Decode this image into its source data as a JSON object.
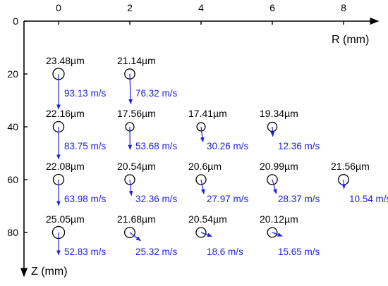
{
  "chart_data": {
    "type": "scatter",
    "xlabel": "R (mm)",
    "ylabel": "Z (mm)",
    "xlim": [
      -1.0,
      9.2
    ],
    "ylim": [
      0,
      95
    ],
    "x_ticks": [
      "0",
      "2",
      "4",
      "6",
      "8"
    ],
    "x_tick_values": [
      0,
      2,
      4,
      6,
      8
    ],
    "y_ticks": [
      "0",
      "20",
      "40",
      "60",
      "80"
    ],
    "y_tick_values": [
      0,
      20,
      40,
      60,
      80
    ],
    "y_inverted": true,
    "x_axis_position": "top",
    "arrow_color": "#2020dd",
    "points": [
      {
        "r": 0,
        "z": 20,
        "diameter": "23.48µm",
        "velocity": "93.13 m/s",
        "vr": 0.0,
        "vz": 1.0
      },
      {
        "r": 2,
        "z": 20,
        "diameter": "21.14µm",
        "velocity": "76.32 m/s",
        "vr": 0.03,
        "vz": 1.0
      },
      {
        "r": 0,
        "z": 40,
        "diameter": "22.16µm",
        "velocity": "83.75 m/s",
        "vr": 0.0,
        "vz": 1.0
      },
      {
        "r": 2,
        "z": 40,
        "diameter": "17.56µm",
        "velocity": "53.68 m/s",
        "vr": 0.01,
        "vz": 1.0
      },
      {
        "r": 4,
        "z": 40,
        "diameter": "17.41µm",
        "velocity": "30.26 m/s",
        "vr": 0.12,
        "vz": 1.0
      },
      {
        "r": 6,
        "z": 40,
        "diameter": "19.34µm",
        "velocity": "12.36 m/s",
        "vr": 0.05,
        "vz": 1.0
      },
      {
        "r": 0,
        "z": 60,
        "diameter": "22.08µm",
        "velocity": "63.98 m/s",
        "vr": 0.0,
        "vz": 1.0
      },
      {
        "r": 2,
        "z": 60,
        "diameter": "20.54µm",
        "velocity": "32.36 m/s",
        "vr": 0.1,
        "vz": 1.0
      },
      {
        "r": 4,
        "z": 60,
        "diameter": "20.6µm",
        "velocity": "27.97 m/s",
        "vr": 0.2,
        "vz": 1.0
      },
      {
        "r": 6,
        "z": 60,
        "diameter": "20.99µm",
        "velocity": "28.37 m/s",
        "vr": 0.28,
        "vz": 1.0
      },
      {
        "r": 8,
        "z": 60,
        "diameter": "21.56µm",
        "velocity": "10.54 m/s",
        "vr": 0.05,
        "vz": 1.0
      },
      {
        "r": 0,
        "z": 80,
        "diameter": "25.05µm",
        "velocity": "52.83 m/s",
        "vr": 0.0,
        "vz": 1.0
      },
      {
        "r": 2,
        "z": 80,
        "diameter": "21.68µm",
        "velocity": "25.32 m/s",
        "vr": 1.3,
        "vz": 1.0
      },
      {
        "r": 4,
        "z": 80,
        "diameter": "20.54µm",
        "velocity": "18.6 m/s",
        "vr": 2.7,
        "vz": 1.0
      },
      {
        "r": 6,
        "z": 80,
        "diameter": "20.12µm",
        "velocity": "15.65 m/s",
        "vr": 2.7,
        "vz": 1.0
      }
    ]
  }
}
